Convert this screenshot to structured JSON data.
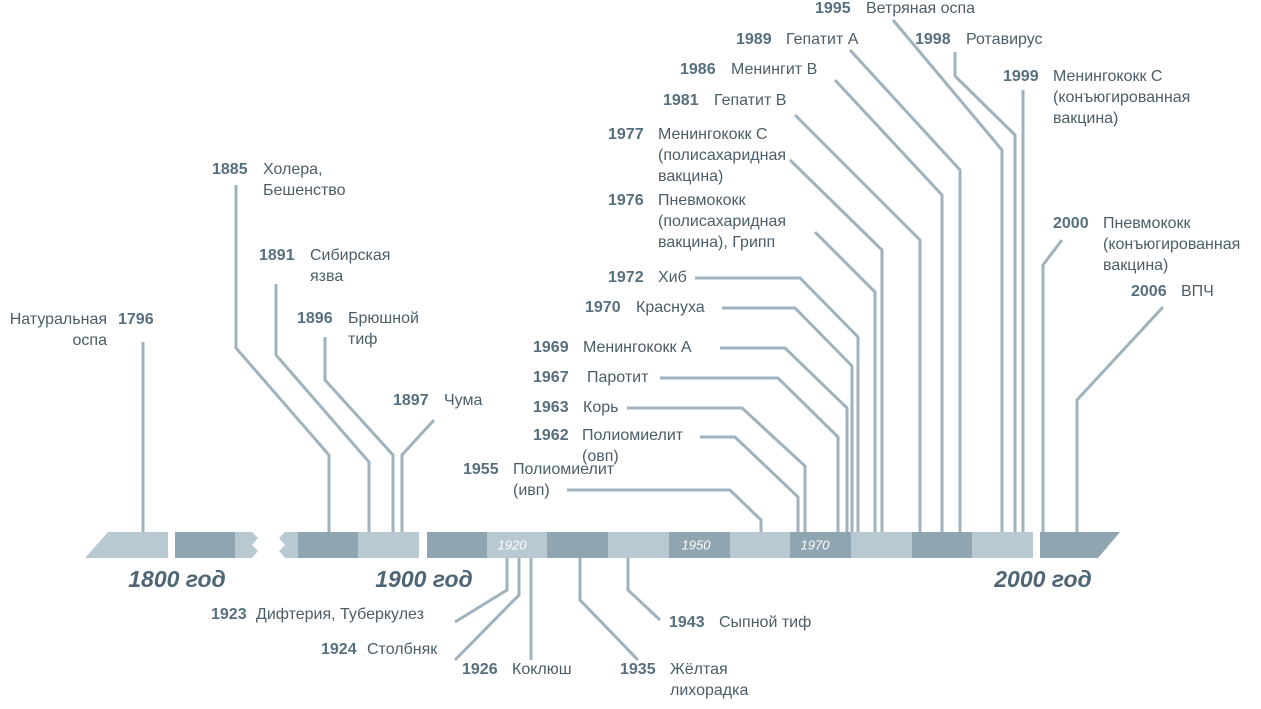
{
  "events": [
    {
      "year": "1796",
      "label": [
        "Натуральная",
        "оспа"
      ]
    },
    {
      "year": "1885",
      "label": [
        "Холера,",
        "Бешенство"
      ]
    },
    {
      "year": "1891",
      "label": [
        "Сибирская",
        "язва"
      ]
    },
    {
      "year": "1896",
      "label": [
        "Брюшной",
        "тиф"
      ]
    },
    {
      "year": "1897",
      "label": [
        "Чума"
      ]
    },
    {
      "year": "1955",
      "label": [
        "Полиомиелит",
        "(ивп)"
      ]
    },
    {
      "year": "1962",
      "label": [
        "Полиомиелит",
        "(овп)"
      ]
    },
    {
      "year": "1963",
      "label": [
        "Корь"
      ]
    },
    {
      "year": "1967",
      "label": [
        "Паротит"
      ]
    },
    {
      "year": "1969",
      "label": [
        "Менингококк А"
      ]
    },
    {
      "year": "1970",
      "label": [
        "Краснуха"
      ]
    },
    {
      "year": "1972",
      "label": [
        "Хиб"
      ]
    },
    {
      "year": "1976",
      "label": [
        "Пневмококк",
        "(полисахаридная",
        "вакцина), Грипп"
      ]
    },
    {
      "year": "1977",
      "label": [
        "Менингококк С",
        "(полисахаридная",
        "вакцина)"
      ]
    },
    {
      "year": "1981",
      "label": [
        "Гепатит В"
      ]
    },
    {
      "year": "1986",
      "label": [
        "Менингит В"
      ]
    },
    {
      "year": "1989",
      "label": [
        "Гепатит А"
      ]
    },
    {
      "year": "1995",
      "label": [
        "Ветряная оспа"
      ]
    },
    {
      "year": "1998",
      "label": [
        "Ротавирус"
      ]
    },
    {
      "year": "1999",
      "label": [
        "Менингококк С",
        "(конъюгированная",
        "вакцина)"
      ]
    },
    {
      "year": "2000",
      "label": [
        "Пневмококк",
        "(конъюгированная",
        "вакцина)"
      ]
    },
    {
      "year": "2006",
      "label": [
        "ВПЧ"
      ]
    },
    {
      "year": "1923",
      "label": [
        "Дифтерия, Туберкулез"
      ]
    },
    {
      "year": "1924",
      "label": [
        "Столбняк"
      ]
    },
    {
      "year": "1926",
      "label": [
        "Коклюш"
      ]
    },
    {
      "year": "1935",
      "label": [
        "Жёлтая",
        "лихорадка"
      ]
    },
    {
      "year": "1943",
      "label": [
        "Сыпной тиф"
      ]
    }
  ],
  "era_labels": [
    "1800 год",
    "1900 год",
    "2000 год"
  ],
  "decade_labels": [
    "1920",
    "1950",
    "1970"
  ]
}
